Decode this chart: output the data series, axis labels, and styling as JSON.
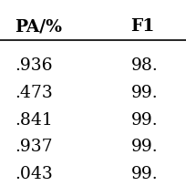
{
  "col_headers": [
    "PA/%",
    "F1"
  ],
  "rows": [
    [
      ".936",
      "98."
    ],
    [
      ".473",
      "99."
    ],
    [
      ".841",
      "99."
    ],
    [
      ".937",
      "99."
    ],
    [
      ".043",
      "99."
    ]
  ],
  "bg_color": "#ffffff",
  "text_color": "#000000",
  "header_fontsize": 13.5,
  "cell_fontsize": 13.5,
  "figsize": [
    2.05,
    2.05
  ],
  "dpi": 100
}
